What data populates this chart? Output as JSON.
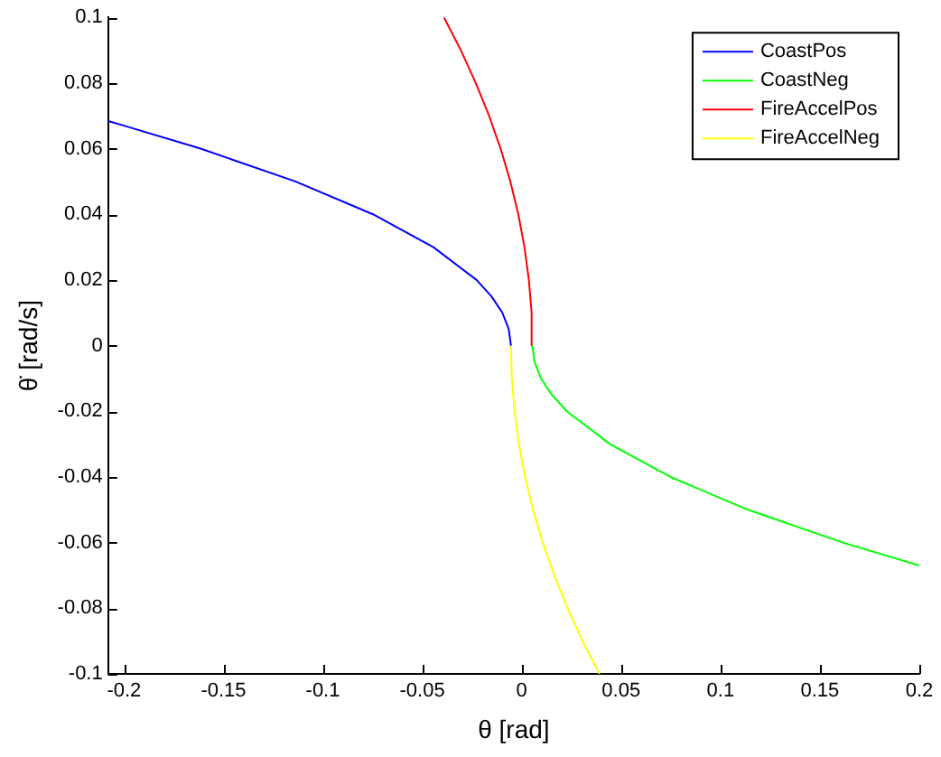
{
  "chart_data": {
    "type": "line",
    "xlabel": "θ [rad]",
    "ylabel": "θ̇ [rad/s]",
    "xlim": [
      -0.208,
      0.2
    ],
    "xticks": [
      -0.2,
      -0.15,
      -0.1,
      -0.05,
      0,
      0.05,
      0.1,
      0.15,
      0.2
    ],
    "ylim": [
      -0.1,
      0.1
    ],
    "yticks": [
      -0.1,
      -0.08,
      -0.06,
      -0.04,
      -0.02,
      0,
      0.02,
      0.04,
      0.06,
      0.08,
      0.1
    ],
    "grid": false,
    "legend": "top right",
    "marker": "none",
    "line_style": "solid",
    "series": [
      {
        "name": "CoastPos",
        "color": "#0000ff",
        "x": [
          -0.0054,
          -0.0065,
          -0.0097,
          -0.0152,
          -0.0227,
          -0.0444,
          -0.0748,
          -0.1138,
          -0.1615,
          -0.2,
          -0.208
        ],
        "values": [
          0,
          0.005,
          0.01,
          0.015,
          0.02,
          0.03,
          0.04,
          0.05,
          0.06,
          0.067,
          0.0684
        ]
      },
      {
        "name": "CoastNeg",
        "color": "#00ff00",
        "x": [
          0.0054,
          0.0065,
          0.0097,
          0.0152,
          0.0227,
          0.0444,
          0.0748,
          0.1138,
          0.1615,
          0.2
        ],
        "values": [
          0,
          -0.005,
          -0.01,
          -0.015,
          -0.02,
          -0.03,
          -0.04,
          -0.05,
          -0.06,
          -0.067
        ]
      },
      {
        "name": "FireAccelPos",
        "color": "#ff0000",
        "x": [
          0.0054,
          0.005,
          0.0036,
          0.0014,
          -0.0017,
          -0.0057,
          -0.0106,
          -0.0164,
          -0.0231,
          -0.0306,
          -0.0391
        ],
        "values": [
          0,
          0.01,
          0.02,
          0.03,
          0.04,
          0.05,
          0.06,
          0.07,
          0.08,
          0.09,
          0.1
        ]
      },
      {
        "name": "FireAccelNeg",
        "color": "#ffff00",
        "x": [
          -0.0054,
          -0.005,
          -0.0036,
          -0.0014,
          0.0017,
          0.0057,
          0.0106,
          0.0164,
          0.0231,
          0.0306,
          0.0391
        ],
        "values": [
          0,
          -0.01,
          -0.02,
          -0.03,
          -0.04,
          -0.05,
          -0.06,
          -0.07,
          -0.08,
          -0.09,
          -0.1
        ]
      }
    ]
  }
}
